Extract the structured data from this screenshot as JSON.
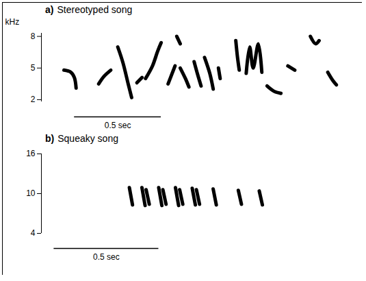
{
  "chart_data": [
    {
      "type": "line",
      "panel": "a)",
      "title": "Stereotyped song",
      "ylabel": "kHz",
      "color": "#000000",
      "tick_labels": "y",
      "xlim": [
        0,
        1.75
      ],
      "ylim": [
        1.8,
        8.3
      ],
      "yticks": [
        2,
        5,
        8
      ],
      "scale_bar": {
        "x": 0.19,
        "length": 0.5,
        "label": "0.5 sec"
      },
      "syllables": [
        [
          [
            0.13,
            4.8
          ],
          [
            0.17,
            4.6
          ],
          [
            0.19,
            4.1
          ],
          [
            0.2,
            3.1
          ]
        ],
        [
          [
            0.33,
            3.5
          ],
          [
            0.36,
            4.2
          ],
          [
            0.4,
            4.8
          ]
        ],
        [
          [
            0.44,
            7.0
          ],
          [
            0.47,
            5.5
          ],
          [
            0.5,
            3.5
          ],
          [
            0.52,
            2.2
          ]
        ],
        [
          [
            0.55,
            3.6
          ],
          [
            0.58,
            4.1
          ]
        ],
        [
          [
            0.6,
            4.0
          ],
          [
            0.64,
            5.2
          ],
          [
            0.67,
            6.6
          ],
          [
            0.69,
            7.4
          ]
        ],
        [
          [
            0.73,
            3.5
          ],
          [
            0.77,
            5.2
          ]
        ],
        [
          [
            0.78,
            8.0
          ],
          [
            0.8,
            7.3
          ]
        ],
        [
          [
            0.8,
            5.0
          ],
          [
            0.83,
            4.0
          ],
          [
            0.85,
            3.2
          ]
        ],
        [
          [
            0.88,
            5.6
          ],
          [
            0.9,
            4.4
          ],
          [
            0.92,
            3.3
          ]
        ],
        [
          [
            0.94,
            6.0
          ],
          [
            0.97,
            4.5
          ],
          [
            0.99,
            3.0
          ]
        ],
        [
          [
            1.02,
            5.0
          ],
          [
            1.03,
            4.0
          ]
        ],
        [
          [
            1.12,
            7.6
          ],
          [
            1.13,
            6.0
          ],
          [
            1.14,
            4.8
          ]
        ],
        [
          [
            1.18,
            4.5
          ],
          [
            1.2,
            7.0
          ],
          [
            1.22,
            5.0
          ],
          [
            1.25,
            7.3
          ],
          [
            1.27,
            4.6
          ]
        ],
        [
          [
            1.3,
            3.3
          ],
          [
            1.34,
            2.8
          ],
          [
            1.38,
            2.6
          ]
        ],
        [
          [
            1.42,
            5.2
          ],
          [
            1.46,
            4.8
          ]
        ],
        [
          [
            1.55,
            8.0
          ],
          [
            1.58,
            7.3
          ],
          [
            1.6,
            7.6
          ]
        ],
        [
          [
            1.65,
            4.6
          ],
          [
            1.68,
            3.8
          ],
          [
            1.7,
            3.4
          ]
        ]
      ]
    },
    {
      "type": "line",
      "panel": "b)",
      "title": "Squeaky song",
      "color": "#000000",
      "tick_labels": "y",
      "xlim": [
        0,
        1.45
      ],
      "ylim": [
        4,
        16
      ],
      "yticks": [
        4,
        10,
        16
      ],
      "scale_bar": {
        "x": 0.06,
        "length": 0.5,
        "label": "0.5 sec"
      },
      "syllables": [
        [
          [
            0.42,
            10.9
          ],
          [
            0.435,
            8.3
          ]
        ],
        [
          [
            0.48,
            10.9
          ],
          [
            0.495,
            8.2
          ]
        ],
        [
          [
            0.5,
            10.6
          ],
          [
            0.515,
            8.4
          ]
        ],
        [
          [
            0.56,
            10.9
          ],
          [
            0.575,
            8.2
          ]
        ],
        [
          [
            0.58,
            10.6
          ],
          [
            0.595,
            8.4
          ]
        ],
        [
          [
            0.64,
            10.9
          ],
          [
            0.655,
            8.2
          ]
        ],
        [
          [
            0.66,
            10.6
          ],
          [
            0.675,
            8.4
          ]
        ],
        [
          [
            0.72,
            10.8
          ],
          [
            0.735,
            8.3
          ]
        ],
        [
          [
            0.74,
            10.6
          ],
          [
            0.755,
            8.4
          ]
        ],
        [
          [
            0.82,
            10.7
          ],
          [
            0.835,
            8.3
          ]
        ],
        [
          [
            0.94,
            10.5
          ],
          [
            0.955,
            8.4
          ]
        ],
        [
          [
            1.04,
            10.4
          ],
          [
            1.055,
            8.3
          ]
        ]
      ]
    }
  ]
}
